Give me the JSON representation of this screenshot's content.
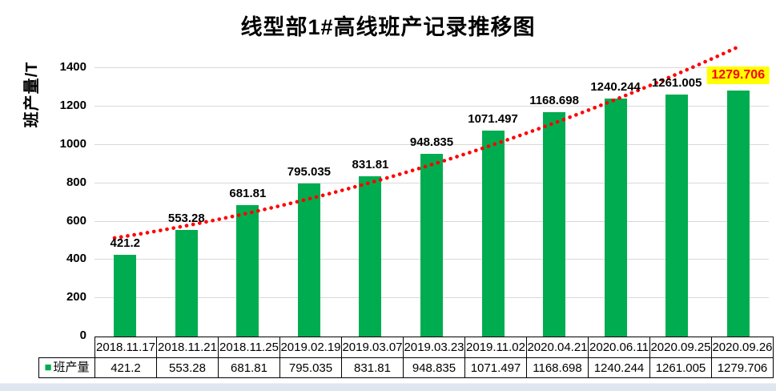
{
  "chart_data": {
    "type": "bar",
    "title": "线型部1#高线班产记录推移图",
    "ylabel": "班产量/T",
    "xlabel": "",
    "series_name": "班产量",
    "categories": [
      "2018.11.17",
      "2018.11.21",
      "2018.11.25",
      "2019.02.19",
      "2019.03.07",
      "2019.03.23",
      "2019.11.02",
      "2020.04.21",
      "2020.06.11",
      "2020.09.25",
      "2020.09.26"
    ],
    "values": [
      421.2,
      553.28,
      681.81,
      795.035,
      831.81,
      948.835,
      1071.497,
      1168.698,
      1240.244,
      1261.005,
      1279.706
    ],
    "value_labels": [
      "421.2",
      "553.28",
      "681.81",
      "795.035",
      "831.81",
      "948.835",
      "1071.497",
      "1168.698",
      "1240.244",
      "1261.005",
      "1279.706"
    ],
    "ylim": [
      0,
      1500
    ],
    "yticks": [
      0,
      200,
      400,
      600,
      800,
      1000,
      1200,
      1400
    ],
    "grid": true,
    "legend_position": "bottom-left-table",
    "trendline": {
      "style": "dotted",
      "color": "#FF0000"
    },
    "highlight_last_value": true
  },
  "colors": {
    "bar": "#00AC50",
    "trend": "#FF0000",
    "highlight_bg": "#FFFF00",
    "highlight_text": "#FF0000",
    "gridline": "#D9D9D9",
    "border": "#000000",
    "footer_strip": "#DFE6F0"
  }
}
